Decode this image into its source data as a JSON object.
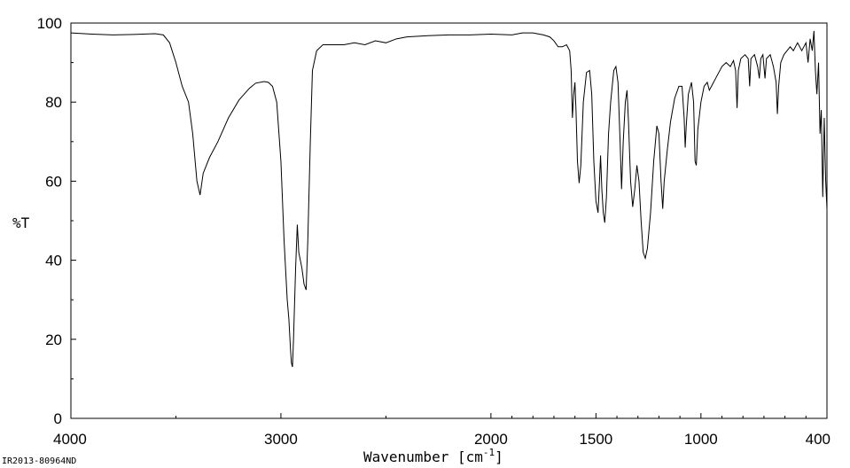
{
  "chart_data": {
    "type": "line",
    "xlabel": "Wavenumber [cm",
    "xlabel_sup": "-1",
    "xlabel_suffix": "]",
    "ylabel": "%T",
    "xlim": [
      4000,
      400
    ],
    "ylim": [
      0,
      100
    ],
    "x_reversed": true,
    "grid": false,
    "x_ticks": [
      4000,
      3000,
      2000,
      1500,
      1000,
      400
    ],
    "y_ticks": [
      0,
      20,
      40,
      60,
      80,
      100
    ],
    "footer": "IR2013-80964ND",
    "series": [
      {
        "color": "#000000",
        "points": [
          [
            4000,
            97.5
          ],
          [
            3900,
            97.2
          ],
          [
            3800,
            97.0
          ],
          [
            3700,
            97.1
          ],
          [
            3600,
            97.3
          ],
          [
            3560,
            97.0
          ],
          [
            3530,
            95.0
          ],
          [
            3500,
            90.0
          ],
          [
            3470,
            84.0
          ],
          [
            3440,
            80.0
          ],
          [
            3420,
            72.0
          ],
          [
            3400,
            60.0
          ],
          [
            3385,
            56.5
          ],
          [
            3370,
            62.0
          ],
          [
            3340,
            66.0
          ],
          [
            3300,
            70.0
          ],
          [
            3250,
            76.0
          ],
          [
            3200,
            80.5
          ],
          [
            3150,
            83.5
          ],
          [
            3120,
            84.8
          ],
          [
            3080,
            85.2
          ],
          [
            3060,
            85.0
          ],
          [
            3040,
            84.0
          ],
          [
            3020,
            80.0
          ],
          [
            3000,
            65.0
          ],
          [
            2985,
            45.0
          ],
          [
            2970,
            30.0
          ],
          [
            2962,
            25.0
          ],
          [
            2955,
            18.0
          ],
          [
            2950,
            14.0
          ],
          [
            2945,
            13.0
          ],
          [
            2940,
            20.0
          ],
          [
            2930,
            38.0
          ],
          [
            2922,
            49.0
          ],
          [
            2915,
            42.0
          ],
          [
            2900,
            38.0
          ],
          [
            2890,
            34.0
          ],
          [
            2880,
            32.5
          ],
          [
            2872,
            45.0
          ],
          [
            2860,
            70.0
          ],
          [
            2850,
            88.0
          ],
          [
            2830,
            93.0
          ],
          [
            2800,
            94.5
          ],
          [
            2700,
            94.5
          ],
          [
            2650,
            95.0
          ],
          [
            2600,
            94.5
          ],
          [
            2550,
            95.5
          ],
          [
            2500,
            95.0
          ],
          [
            2450,
            96.0
          ],
          [
            2400,
            96.5
          ],
          [
            2300,
            96.8
          ],
          [
            2200,
            97.0
          ],
          [
            2100,
            97.0
          ],
          [
            2000,
            97.2
          ],
          [
            1900,
            97.0
          ],
          [
            1850,
            97.5
          ],
          [
            1800,
            97.5
          ],
          [
            1750,
            97.0
          ],
          [
            1720,
            96.5
          ],
          [
            1700,
            95.5
          ],
          [
            1680,
            94.0
          ],
          [
            1660,
            94.0
          ],
          [
            1640,
            94.5
          ],
          [
            1625,
            93.0
          ],
          [
            1618,
            88.0
          ],
          [
            1612,
            76.0
          ],
          [
            1606,
            82.0
          ],
          [
            1600,
            85.0
          ],
          [
            1595,
            78.0
          ],
          [
            1588,
            65.0
          ],
          [
            1580,
            59.5
          ],
          [
            1572,
            64.0
          ],
          [
            1560,
            80.0
          ],
          [
            1545,
            87.5
          ],
          [
            1530,
            88.0
          ],
          [
            1520,
            82.0
          ],
          [
            1510,
            65.0
          ],
          [
            1500,
            55.0
          ],
          [
            1490,
            52.0
          ],
          [
            1483,
            60.0
          ],
          [
            1478,
            66.5
          ],
          [
            1472,
            58.0
          ],
          [
            1465,
            52.0
          ],
          [
            1458,
            49.5
          ],
          [
            1450,
            56.0
          ],
          [
            1440,
            72.0
          ],
          [
            1430,
            80.0
          ],
          [
            1415,
            88.0
          ],
          [
            1405,
            89.0
          ],
          [
            1395,
            85.0
          ],
          [
            1385,
            70.0
          ],
          [
            1378,
            58.0
          ],
          [
            1370,
            70.0
          ],
          [
            1360,
            80.0
          ],
          [
            1352,
            83.0
          ],
          [
            1345,
            75.0
          ],
          [
            1335,
            60.0
          ],
          [
            1325,
            53.5
          ],
          [
            1315,
            58.0
          ],
          [
            1305,
            64.0
          ],
          [
            1295,
            60.0
          ],
          [
            1285,
            50.0
          ],
          [
            1275,
            42.0
          ],
          [
            1265,
            40.5
          ],
          [
            1255,
            43.0
          ],
          [
            1240,
            52.0
          ],
          [
            1225,
            65.0
          ],
          [
            1210,
            74.0
          ],
          [
            1200,
            72.0
          ],
          [
            1190,
            60.0
          ],
          [
            1182,
            53.0
          ],
          [
            1175,
            60.0
          ],
          [
            1160,
            68.0
          ],
          [
            1145,
            75.0
          ],
          [
            1125,
            81.0
          ],
          [
            1105,
            84.0
          ],
          [
            1090,
            84.0
          ],
          [
            1080,
            76.0
          ],
          [
            1075,
            68.5
          ],
          [
            1070,
            74.0
          ],
          [
            1060,
            82.0
          ],
          [
            1045,
            85.0
          ],
          [
            1035,
            80.0
          ],
          [
            1028,
            65.0
          ],
          [
            1022,
            64.0
          ],
          [
            1015,
            73.0
          ],
          [
            1000,
            80.0
          ],
          [
            985,
            84.0
          ],
          [
            970,
            85.0
          ],
          [
            960,
            83.0
          ],
          [
            950,
            84.0
          ],
          [
            930,
            86.0
          ],
          [
            900,
            89.0
          ],
          [
            880,
            90.0
          ],
          [
            860,
            89.0
          ],
          [
            845,
            90.5
          ],
          [
            835,
            88.0
          ],
          [
            828,
            78.5
          ],
          [
            822,
            88.0
          ],
          [
            810,
            91.0
          ],
          [
            790,
            92.0
          ],
          [
            775,
            91.0
          ],
          [
            768,
            84.0
          ],
          [
            762,
            91.0
          ],
          [
            745,
            92.0
          ],
          [
            730,
            89.0
          ],
          [
            722,
            86.0
          ],
          [
            715,
            91.0
          ],
          [
            705,
            92.0
          ],
          [
            695,
            86.0
          ],
          [
            688,
            91.0
          ],
          [
            670,
            92.0
          ],
          [
            655,
            89.0
          ],
          [
            642,
            85.0
          ],
          [
            636,
            77.0
          ],
          [
            630,
            84.0
          ],
          [
            620,
            90.0
          ],
          [
            605,
            92.0
          ],
          [
            590,
            93.0
          ],
          [
            575,
            94.0
          ],
          [
            560,
            93.0
          ],
          [
            540,
            95.0
          ],
          [
            520,
            93.0
          ],
          [
            500,
            95.0
          ],
          [
            490,
            90.0
          ],
          [
            480,
            96.0
          ],
          [
            470,
            93.0
          ],
          [
            462,
            98.0
          ],
          [
            455,
            88.0
          ],
          [
            448,
            82.0
          ],
          [
            440,
            90.0
          ],
          [
            433,
            72.0
          ],
          [
            427,
            78.0
          ],
          [
            420,
            56.0
          ],
          [
            413,
            76.0
          ],
          [
            406,
            60.0
          ],
          [
            400,
            53.0
          ]
        ]
      }
    ]
  }
}
